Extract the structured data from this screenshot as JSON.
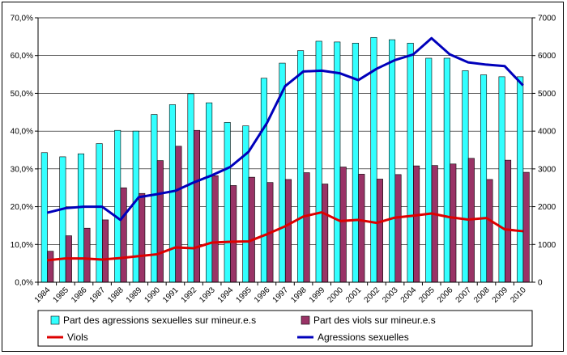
{
  "chart_data": {
    "type": "bar",
    "title": "",
    "xlabel": "",
    "ylabel": "",
    "y2label": "",
    "categories": [
      "1984",
      "1985",
      "1986",
      "1987",
      "1988",
      "1989",
      "1990",
      "1991",
      "1992",
      "1993",
      "1994",
      "1995",
      "1996",
      "1997",
      "1998",
      "1999",
      "2000",
      "2001",
      "2002",
      "2003",
      "2004",
      "2005",
      "2006",
      "2007",
      "2008",
      "2009",
      "2010"
    ],
    "ylim": [
      0,
      70
    ],
    "y_ticks": [
      "0,0%",
      "10,0%",
      "20,0%",
      "30,0%",
      "40,0%",
      "50,0%",
      "60,0%",
      "70,0%"
    ],
    "y2lim": [
      0,
      7000
    ],
    "y2_ticks": [
      "0",
      "1000",
      "2000",
      "3000",
      "4000",
      "5000",
      "6000",
      "7000"
    ],
    "grid": true,
    "legend_position": "bottom",
    "series": [
      {
        "name": "Part des agressions sexuelles sur mineur.e.s",
        "kind": "bar",
        "axis": "left",
        "color": "#33FFFF",
        "values": [
          34.3,
          33.2,
          34.0,
          36.7,
          40.2,
          40.0,
          44.4,
          47.0,
          49.9,
          47.5,
          42.3,
          41.4,
          54.0,
          58.0,
          61.3,
          63.8,
          63.6,
          63.3,
          64.8,
          64.2,
          63.3,
          59.3,
          59.3,
          56.0,
          54.9,
          54.4,
          54.4
        ]
      },
      {
        "name": "Part des viols sur mineur.e.s",
        "kind": "bar",
        "axis": "left",
        "color": "#993366",
        "values": [
          8.2,
          12.3,
          14.3,
          16.5,
          25.0,
          23.5,
          32.2,
          36.0,
          40.2,
          28.2,
          25.6,
          27.8,
          26.4,
          27.2,
          29.0,
          26.0,
          30.5,
          28.6,
          27.3,
          28.5,
          30.8,
          30.9,
          31.3,
          32.8,
          27.2,
          32.3,
          29.1
        ]
      },
      {
        "name": "Viols",
        "kind": "line",
        "axis": "right",
        "color": "#DD0000",
        "values": [
          580,
          630,
          630,
          600,
          640,
          690,
          740,
          920,
          900,
          1050,
          1070,
          1080,
          1270,
          1480,
          1740,
          1850,
          1620,
          1650,
          1570,
          1710,
          1760,
          1820,
          1720,
          1660,
          1700,
          1400,
          1350
        ]
      },
      {
        "name": "Agressions sexuelles",
        "kind": "line",
        "axis": "right",
        "color": "#0000BB",
        "values": [
          1840,
          1960,
          2000,
          2000,
          1650,
          2250,
          2330,
          2420,
          2640,
          2830,
          3050,
          3450,
          4210,
          5190,
          5580,
          5600,
          5530,
          5350,
          5650,
          5880,
          6030,
          6460,
          6030,
          5820,
          5760,
          5720,
          5210
        ]
      }
    ]
  }
}
